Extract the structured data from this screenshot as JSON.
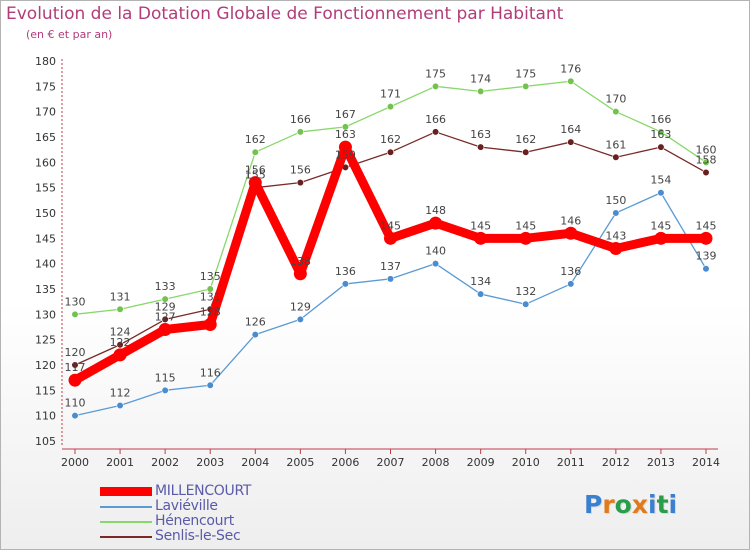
{
  "header": {
    "title": "Evolution de la Dotation Globale de Fonctionnement par Habitant",
    "subtitle": "(en € et par an)"
  },
  "logo": {
    "letters": [
      {
        "ch": "P",
        "color": "#3a7fd0"
      },
      {
        "ch": "r",
        "color": "#e07a1c"
      },
      {
        "ch": "o",
        "color": "#2a9d4a"
      },
      {
        "ch": "x",
        "color": "#e07a1c"
      },
      {
        "ch": "i",
        "color": "#3a7fd0"
      },
      {
        "ch": "t",
        "color": "#2a9d4a"
      },
      {
        "ch": "i",
        "color": "#3a7fd0"
      }
    ]
  },
  "legend": [
    {
      "label": "MILLENCOURT",
      "color": "#ff0000",
      "thick": true
    },
    {
      "label": "Laviéville",
      "color": "#5a9bd4",
      "thick": false
    },
    {
      "label": "Hénencourt",
      "color": "#88d86a",
      "thick": false
    },
    {
      "label": "Senlis-le-Sec",
      "color": "#7a2a2a",
      "thick": false
    }
  ],
  "chart_data": {
    "type": "line",
    "title": "Evolution de la Dotation Globale de Fonctionnement par Habitant",
    "subtitle": "(en € et par an)",
    "x": [
      "2000",
      "2001",
      "2002",
      "2003",
      "2004",
      "2005",
      "2006",
      "2007",
      "2008",
      "2009",
      "2010",
      "2011",
      "2012",
      "2013",
      "2014"
    ],
    "ylim": [
      105,
      180
    ],
    "yticks": [
      105,
      110,
      115,
      120,
      125,
      130,
      135,
      140,
      145,
      150,
      155,
      160,
      165,
      170,
      175,
      180
    ],
    "grid": false,
    "legend_position": "bottom-left",
    "series": [
      {
        "name": "Hénencourt",
        "color": "#88d86a",
        "dot": "#74c24e",
        "values": [
          130,
          131,
          133,
          135,
          162,
          166,
          167,
          171,
          175,
          174,
          175,
          176,
          170,
          166,
          160
        ]
      },
      {
        "name": "Senlis-le-Sec",
        "color": "#7a2a2a",
        "dot": "#6a1f1f",
        "values": [
          120,
          124,
          129,
          131,
          155,
          156,
          159,
          162,
          166,
          163,
          162,
          164,
          161,
          163,
          158
        ]
      },
      {
        "name": "Laviéville",
        "color": "#5a9bd4",
        "dot": "#4a8ccf",
        "values": [
          110,
          112,
          115,
          116,
          126,
          129,
          136,
          137,
          140,
          134,
          132,
          136,
          150,
          154,
          139
        ]
      },
      {
        "name": "MILLENCOURT",
        "color": "#ff0000",
        "dot": "#ff0000",
        "values": [
          117,
          122,
          127,
          128,
          156,
          138,
          163,
          145,
          148,
          145,
          145,
          146,
          143,
          145,
          145
        ]
      }
    ]
  }
}
